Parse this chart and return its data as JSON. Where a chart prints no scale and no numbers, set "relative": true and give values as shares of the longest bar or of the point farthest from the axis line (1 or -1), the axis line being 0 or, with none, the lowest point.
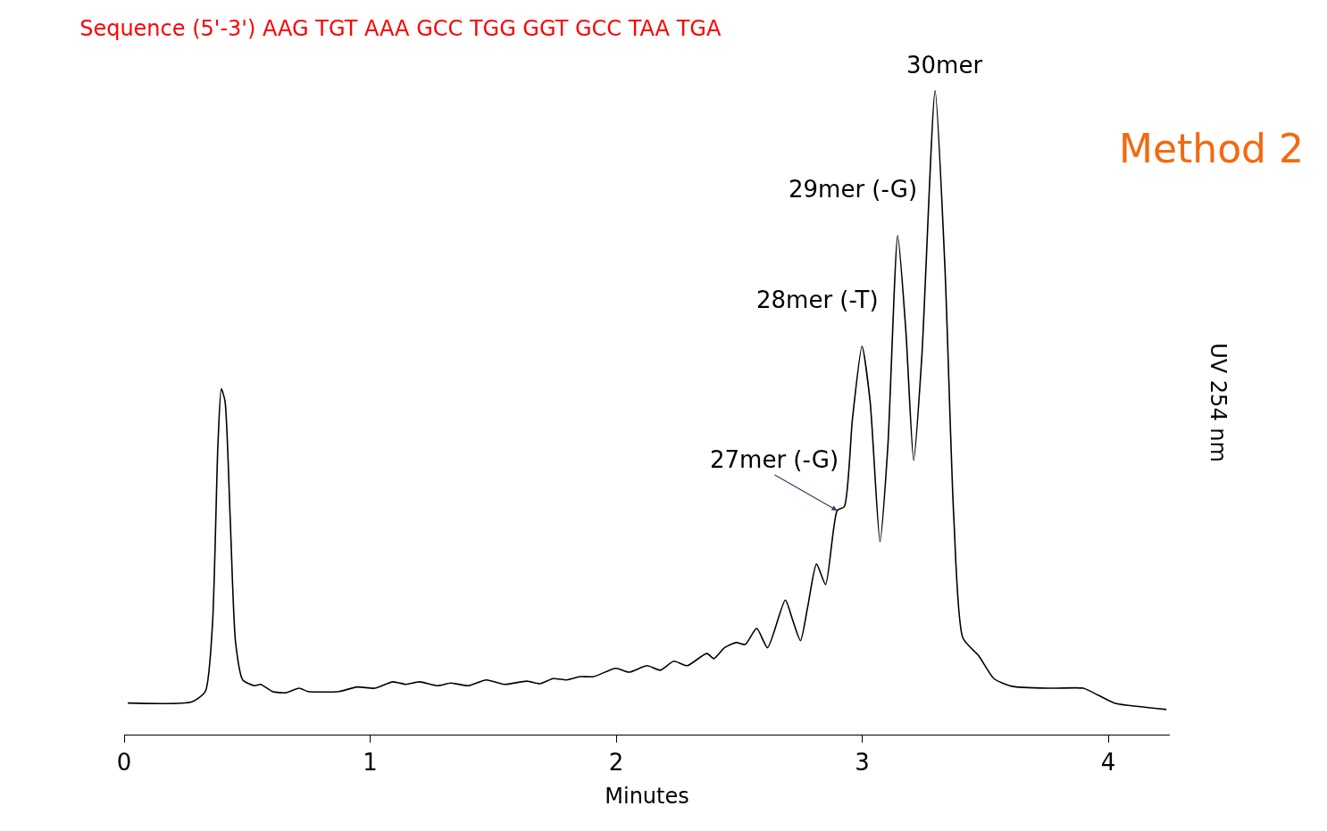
{
  "chart_data": {
    "type": "line",
    "title": "Sequence (5'-3') AAG TGT AAA GCC TGG GGT GCC TAA TGA",
    "subtitle": "Method 2",
    "xlabel": "Minutes",
    "ylabel": "UV 254 nm",
    "relative": true,
    "x": [
      0.015,
      0.276,
      0.33,
      0.359,
      0.381,
      0.395,
      0.41,
      0.431,
      0.453,
      0.482,
      0.529,
      0.555,
      0.602,
      0.656,
      0.711,
      0.747,
      0.874,
      0.947,
      1.019,
      1.092,
      1.146,
      1.2,
      1.273,
      1.328,
      1.4,
      1.472,
      1.545,
      1.636,
      1.69,
      1.744,
      1.799,
      1.853,
      1.908,
      1.998,
      2.053,
      2.125,
      2.179,
      2.234,
      2.288,
      2.368,
      2.397,
      2.44,
      2.488,
      2.524,
      2.571,
      2.615,
      2.687,
      2.717,
      2.749,
      2.778,
      2.814,
      2.851,
      2.898,
      2.927,
      2.96,
      2.999,
      3.032,
      3.072,
      3.104,
      3.144,
      3.177,
      3.209,
      3.242,
      3.296,
      3.336,
      3.372,
      3.409,
      3.474,
      3.535,
      3.608,
      3.771,
      3.898,
      3.96,
      4.025,
      4.236
    ],
    "series": [
      {
        "color": "#000000",
        "values": [
          0.049,
          0.051,
          0.067,
          0.171,
          0.448,
          0.537,
          0.518,
          0.337,
          0.143,
          0.085,
          0.076,
          0.078,
          0.067,
          0.065,
          0.072,
          0.067,
          0.067,
          0.074,
          0.072,
          0.082,
          0.078,
          0.082,
          0.076,
          0.08,
          0.076,
          0.085,
          0.078,
          0.083,
          0.079,
          0.087,
          0.085,
          0.09,
          0.09,
          0.103,
          0.097,
          0.107,
          0.1,
          0.114,
          0.107,
          0.126,
          0.118,
          0.135,
          0.143,
          0.14,
          0.165,
          0.135,
          0.209,
          0.178,
          0.146,
          0.198,
          0.265,
          0.233,
          0.348,
          0.354,
          0.49,
          0.603,
          0.517,
          0.3,
          0.448,
          0.775,
          0.628,
          0.426,
          0.587,
          1.0,
          0.725,
          0.337,
          0.15,
          0.122,
          0.087,
          0.075,
          0.072,
          0.072,
          0.061,
          0.049,
          0.039
        ]
      }
    ],
    "xlim": [
      0,
      4.25
    ],
    "xticks": [
      0,
      1,
      2,
      3,
      4
    ],
    "marker": "none",
    "line_style": "solid",
    "annotations": [
      {
        "text": "27mer (-G)",
        "x": 2.898,
        "y": 0.348
      },
      {
        "text": "28mer (-T)",
        "x": 2.999,
        "y": 0.603
      },
      {
        "text": "29mer (-G)",
        "x": 3.144,
        "y": 0.775
      },
      {
        "text": "30mer",
        "x": 3.296,
        "y": 1.0
      }
    ]
  }
}
